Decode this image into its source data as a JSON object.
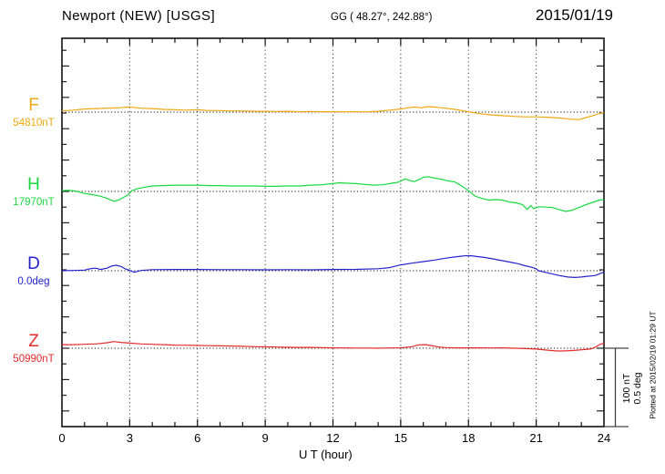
{
  "header": {
    "station": "Newport (NEW)  [USGS]",
    "coords": "GG ( 48.27°, 242.88°)",
    "date": "2015/01/19"
  },
  "channels": [
    {
      "letter": "F",
      "value": "54810nT",
      "color": "#f0a810"
    },
    {
      "letter": "H",
      "value": "17970nT",
      "color": "#17d93f"
    },
    {
      "letter": "D",
      "value": "0.0deg",
      "color": "#2424cd"
    },
    {
      "letter": "Z",
      "value": "50990nT",
      "color": "#e62b2b"
    }
  ],
  "scale_bar": {
    "text": "100 nT\n0.5 deg"
  },
  "side_note": "Plotted at 2015/02/19 01:29 UT",
  "chart_data": {
    "type": "line",
    "title": "Newport (NEW) [USGS] magnetogram, 2015/01/19",
    "xlabel": "U T (hour)",
    "x_range": [
      0,
      24
    ],
    "x_major_ticks": [
      0,
      3,
      6,
      9,
      12,
      15,
      18,
      21,
      24
    ],
    "x_minor_step": 1,
    "grid": "vertical dotted lines every 3 h; dotted zero-baseline per channel",
    "legend_position": "left margin (channel letter + baseline value)",
    "scale": {
      "nT_per_division": 100,
      "deg_per_division": 0.5
    },
    "series": [
      {
        "name": "F",
        "unit": "nT",
        "baseline": "54810nT",
        "points": [
          [
            0,
            1.5
          ],
          [
            0.5,
            2.5
          ],
          [
            1,
            4
          ],
          [
            1.5,
            4.5
          ],
          [
            2,
            5
          ],
          [
            2.5,
            5.5
          ],
          [
            3,
            6.5
          ],
          [
            3.5,
            5
          ],
          [
            4,
            4.5
          ],
          [
            4.5,
            3.5
          ],
          [
            5,
            3
          ],
          [
            5.5,
            2.5
          ],
          [
            6,
            3
          ],
          [
            6.5,
            2
          ],
          [
            7,
            2
          ],
          [
            7.5,
            1.5
          ],
          [
            8,
            1.5
          ],
          [
            8.5,
            1
          ],
          [
            9,
            1
          ],
          [
            9.5,
            0.8
          ],
          [
            10,
            1
          ],
          [
            10.5,
            0.5
          ],
          [
            11,
            0.8
          ],
          [
            11.5,
            0.5
          ],
          [
            12,
            0.5
          ],
          [
            12.5,
            0.3
          ],
          [
            13,
            0.5
          ],
          [
            13.5,
            0.3
          ],
          [
            14,
            1
          ],
          [
            14.5,
            2.5
          ],
          [
            15,
            4
          ],
          [
            15.3,
            5.5
          ],
          [
            15.6,
            6.5
          ],
          [
            15.9,
            5.5
          ],
          [
            16.2,
            7
          ],
          [
            16.5,
            6.5
          ],
          [
            16.8,
            5.5
          ],
          [
            17,
            5
          ],
          [
            17.5,
            3
          ],
          [
            18,
            0.5
          ],
          [
            18.5,
            -2
          ],
          [
            19,
            -3.5
          ],
          [
            19.5,
            -4.5
          ],
          [
            20,
            -5.5
          ],
          [
            20.5,
            -6
          ],
          [
            21,
            -6
          ],
          [
            21.5,
            -6.5
          ],
          [
            22,
            -7.5
          ],
          [
            22.5,
            -9
          ],
          [
            22.9,
            -9.5
          ],
          [
            23.2,
            -7
          ],
          [
            23.5,
            -4.5
          ],
          [
            23.8,
            -2
          ],
          [
            24,
            -0.5
          ]
        ]
      },
      {
        "name": "H",
        "unit": "nT",
        "baseline": "17970nT",
        "points": [
          [
            0,
            1
          ],
          [
            0.3,
            1.5
          ],
          [
            0.6,
            0.5
          ],
          [
            1,
            -2.5
          ],
          [
            1.3,
            -4
          ],
          [
            1.7,
            -6
          ],
          [
            2,
            -9
          ],
          [
            2.3,
            -12.5
          ],
          [
            2.5,
            -11
          ],
          [
            2.7,
            -8
          ],
          [
            2.9,
            -5
          ],
          [
            3.1,
            1
          ],
          [
            3.4,
            4
          ],
          [
            3.7,
            5.5
          ],
          [
            4,
            7
          ],
          [
            4.5,
            7.5
          ],
          [
            5,
            8
          ],
          [
            5.5,
            8
          ],
          [
            6,
            8
          ],
          [
            6.5,
            7.5
          ],
          [
            7,
            7.5
          ],
          [
            7.5,
            7
          ],
          [
            8,
            7
          ],
          [
            8.5,
            7
          ],
          [
            9,
            6.5
          ],
          [
            9.5,
            6.5
          ],
          [
            10,
            7
          ],
          [
            10.5,
            7
          ],
          [
            11,
            8
          ],
          [
            11.5,
            8.5
          ],
          [
            12,
            10
          ],
          [
            12.3,
            11
          ],
          [
            12.6,
            10.5
          ],
          [
            13,
            10
          ],
          [
            13.4,
            9
          ],
          [
            13.8,
            8
          ],
          [
            14.2,
            8.5
          ],
          [
            14.6,
            10.5
          ],
          [
            14.9,
            11.8
          ],
          [
            15.2,
            16
          ],
          [
            15.4,
            14
          ],
          [
            15.6,
            12.5
          ],
          [
            15.8,
            15
          ],
          [
            16,
            18
          ],
          [
            16.2,
            18.8
          ],
          [
            16.5,
            17
          ],
          [
            16.8,
            15.5
          ],
          [
            17.1,
            13.5
          ],
          [
            17.4,
            12
          ],
          [
            17.7,
            7
          ],
          [
            18,
            1
          ],
          [
            18.3,
            -6
          ],
          [
            18.6,
            -9
          ],
          [
            18.9,
            -11
          ],
          [
            19.2,
            -10.5
          ],
          [
            19.5,
            -11
          ],
          [
            19.8,
            -13.5
          ],
          [
            20.1,
            -14.5
          ],
          [
            20.4,
            -17
          ],
          [
            20.6,
            -23
          ],
          [
            20.75,
            -18
          ],
          [
            20.9,
            -22
          ],
          [
            21.1,
            -19.5
          ],
          [
            21.4,
            -20
          ],
          [
            21.7,
            -20.5
          ],
          [
            22,
            -23
          ],
          [
            22.3,
            -25.5
          ],
          [
            22.6,
            -24
          ],
          [
            22.9,
            -20.5
          ],
          [
            23.2,
            -17
          ],
          [
            23.5,
            -14
          ],
          [
            23.8,
            -11
          ],
          [
            24,
            -10.5
          ]
        ]
      },
      {
        "name": "D",
        "unit": "deg",
        "baseline": "0.0deg",
        "points": [
          [
            0,
            0
          ],
          [
            0.5,
            0.002
          ],
          [
            1,
            0.004
          ],
          [
            1.3,
            0.014
          ],
          [
            1.5,
            0.016
          ],
          [
            1.7,
            0.008
          ],
          [
            2,
            0.016
          ],
          [
            2.2,
            0.03
          ],
          [
            2.4,
            0.035
          ],
          [
            2.6,
            0.028
          ],
          [
            2.8,
            0.012
          ],
          [
            3,
            0.002
          ],
          [
            3.2,
            -0.01
          ],
          [
            3.5,
            0.002
          ],
          [
            4,
            0.007
          ],
          [
            5,
            0.008
          ],
          [
            6,
            0.008
          ],
          [
            7,
            0.007
          ],
          [
            8,
            0.007
          ],
          [
            9,
            0.006
          ],
          [
            10,
            0.007
          ],
          [
            11,
            0.006
          ],
          [
            12,
            0.008
          ],
          [
            13,
            0.009
          ],
          [
            14,
            0.013
          ],
          [
            14.5,
            0.02
          ],
          [
            15,
            0.037
          ],
          [
            15.5,
            0.048
          ],
          [
            16,
            0.058
          ],
          [
            16.5,
            0.068
          ],
          [
            17,
            0.08
          ],
          [
            17.4,
            0.088
          ],
          [
            17.8,
            0.095
          ],
          [
            18.1,
            0.096
          ],
          [
            18.4,
            0.09
          ],
          [
            18.7,
            0.085
          ],
          [
            19,
            0.078
          ],
          [
            19.4,
            0.067
          ],
          [
            19.8,
            0.056
          ],
          [
            20.2,
            0.045
          ],
          [
            20.5,
            0.032
          ],
          [
            20.8,
            0.022
          ],
          [
            21,
            0.012
          ],
          [
            21.1,
            0
          ],
          [
            21.4,
            -0.01
          ],
          [
            21.7,
            -0.02
          ],
          [
            22,
            -0.03
          ],
          [
            22.4,
            -0.04
          ],
          [
            22.7,
            -0.043
          ],
          [
            23,
            -0.04
          ],
          [
            23.3,
            -0.035
          ],
          [
            23.6,
            -0.031
          ],
          [
            23.8,
            -0.02
          ],
          [
            24,
            -0.008
          ]
        ]
      },
      {
        "name": "Z",
        "unit": "nT",
        "baseline": "50990nT",
        "points": [
          [
            0,
            4.5
          ],
          [
            0.5,
            4.5
          ],
          [
            1,
            5
          ],
          [
            1.5,
            5.5
          ],
          [
            2,
            7
          ],
          [
            2.3,
            8.5
          ],
          [
            2.6,
            7.5
          ],
          [
            3,
            6.5
          ],
          [
            3.5,
            5.5
          ],
          [
            4,
            5
          ],
          [
            4.5,
            4.5
          ],
          [
            5,
            4
          ],
          [
            5.5,
            3.8
          ],
          [
            6,
            3.5
          ],
          [
            6.5,
            3.2
          ],
          [
            7,
            3
          ],
          [
            7.5,
            2.8
          ],
          [
            8,
            2.5
          ],
          [
            8.5,
            2
          ],
          [
            9,
            1.8
          ],
          [
            9.5,
            1.5
          ],
          [
            10,
            1.2
          ],
          [
            10.5,
            1
          ],
          [
            11,
            1
          ],
          [
            11.5,
            0.8
          ],
          [
            12,
            0.5
          ],
          [
            12.5,
            0.3
          ],
          [
            13,
            0.2
          ],
          [
            13.5,
            0.2
          ],
          [
            14,
            0
          ],
          [
            14.5,
            0.3
          ],
          [
            15,
            0.5
          ],
          [
            15.5,
            2
          ],
          [
            15.8,
            4.3
          ],
          [
            16.1,
            4.5
          ],
          [
            16.4,
            3
          ],
          [
            16.7,
            1.5
          ],
          [
            17,
            0.8
          ],
          [
            17.5,
            0.5
          ],
          [
            18,
            0.5
          ],
          [
            18.5,
            0.5
          ],
          [
            19,
            0.3
          ],
          [
            19.5,
            0.5
          ],
          [
            20,
            0
          ],
          [
            20.5,
            -0.5
          ],
          [
            21,
            -1
          ],
          [
            21.5,
            -2.5
          ],
          [
            21.9,
            -3.5
          ],
          [
            22.2,
            -3.5
          ],
          [
            22.5,
            -3
          ],
          [
            22.8,
            -2.5
          ],
          [
            23.1,
            -1.8
          ],
          [
            23.4,
            -1
          ],
          [
            23.6,
            1
          ],
          [
            23.8,
            4.5
          ],
          [
            24,
            6.5
          ]
        ]
      }
    ]
  }
}
